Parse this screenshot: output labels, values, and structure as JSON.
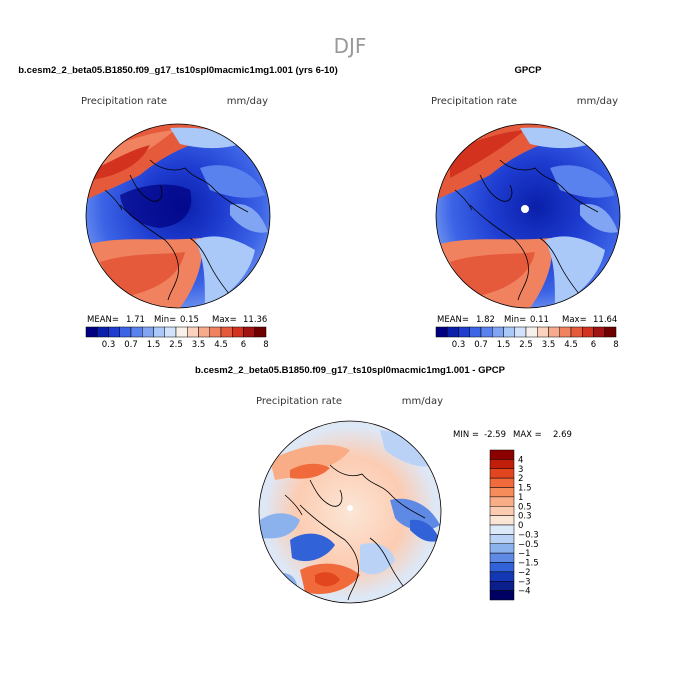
{
  "page_title": "DJF",
  "maps": [
    {
      "id": "model",
      "title": "b.cesm2_2_beta05.B1850.f09_g17_ts10spl0macmic1mg1.001 (yrs 6-10)",
      "left_label": "Precipitation rate",
      "right_label": "mm/day",
      "stats": {
        "mean_label": "MEAN=",
        "mean": "1.71",
        "min_label": "Min=",
        "min": "0.15",
        "max_label": "Max=",
        "max": "11.36"
      }
    },
    {
      "id": "obs",
      "title": "GPCP",
      "left_label": "Precipitation rate",
      "right_label": "mm/day",
      "stats": {
        "mean_label": "MEAN=",
        "mean": "1.82",
        "min_label": "Min=",
        "min": "0.11",
        "max_label": "Max=",
        "max": "11.64"
      }
    },
    {
      "id": "diff",
      "title": "b.cesm2_2_beta05.B1850.f09_g17_ts10spl0macmic1mg1.001 - GPCP",
      "left_label": "Precipitation rate",
      "right_label": "mm/day",
      "stats": {
        "min_label": "MIN =",
        "min": "-2.59",
        "max_label": "MAX =",
        "max": "2.69"
      }
    }
  ],
  "chart_data": [
    {
      "type": "heatmap",
      "title": "b.cesm2_2_beta05.B1850.f09_g17_ts10spl0macmic1mg1.001 (yrs 6-10)",
      "variable": "Precipitation rate",
      "units": "mm/day",
      "projection": "north polar stereographic",
      "stats": {
        "mean": 1.71,
        "min": 0.15,
        "max": 11.36
      },
      "colorbar": {
        "orientation": "horizontal",
        "levels": [
          "0.3",
          "0.7",
          "1.5",
          "2.5",
          "3.5",
          "4.5",
          "6",
          "8"
        ],
        "colors": [
          "#000080",
          "#0a1faa",
          "#1e3cd0",
          "#3c64e6",
          "#5a82ee",
          "#82a5f3",
          "#aac8f8",
          "#d2e2fb",
          "#f8f0ea",
          "#fbd2be",
          "#f8aa8c",
          "#f0825f",
          "#e65a3c",
          "#d2321e",
          "#a01414",
          "#6e0000"
        ]
      }
    },
    {
      "type": "heatmap",
      "title": "GPCP",
      "variable": "Precipitation rate",
      "units": "mm/day",
      "projection": "north polar stereographic",
      "stats": {
        "mean": 1.82,
        "min": 0.11,
        "max": 11.64
      },
      "colorbar": {
        "orientation": "horizontal",
        "levels": [
          "0.3",
          "0.7",
          "1.5",
          "2.5",
          "3.5",
          "4.5",
          "6",
          "8"
        ],
        "colors": [
          "#000080",
          "#0a1faa",
          "#1e3cd0",
          "#3c64e6",
          "#5a82ee",
          "#82a5f3",
          "#aac8f8",
          "#d2e2fb",
          "#f8f0ea",
          "#fbd2be",
          "#f8aa8c",
          "#f0825f",
          "#e65a3c",
          "#d2321e",
          "#a01414",
          "#6e0000"
        ]
      }
    },
    {
      "type": "heatmap",
      "title": "b.cesm2_2_beta05.B1850.f09_g17_ts10spl0macmic1mg1.001 - GPCP",
      "variable": "Precipitation rate",
      "units": "mm/day",
      "projection": "north polar stereographic",
      "stats": {
        "min": -2.59,
        "max": 2.69
      },
      "colorbar": {
        "orientation": "vertical",
        "levels": [
          "4",
          "3",
          "2",
          "1.5",
          "1",
          "0.5",
          "0.3",
          "0",
          "−0.3",
          "−0.5",
          "−1",
          "−1.5",
          "−2",
          "−3",
          "−4"
        ],
        "colors": [
          "#8c0000",
          "#c01e0a",
          "#e2461e",
          "#f06a3c",
          "#f68c5a",
          "#f9ad87",
          "#fcccb2",
          "#fbe6d6",
          "#dce9f9",
          "#bad2f5",
          "#8cb2ee",
          "#5e8ae6",
          "#3262d8",
          "#1437b4",
          "#0a1e8c",
          "#000064"
        ]
      }
    }
  ]
}
